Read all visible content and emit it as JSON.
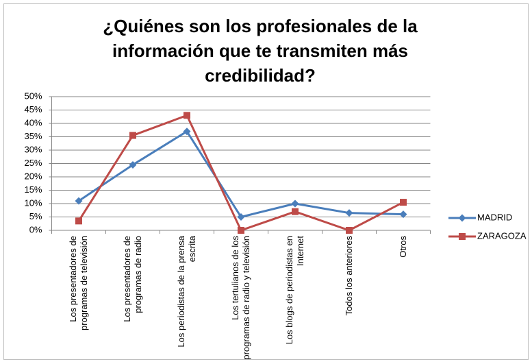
{
  "chart_data": {
    "type": "line",
    "title": "¿Quiénes son los profesionales de la información que te transmiten más credibilidad?",
    "categories": [
      "Los presentadores de programas de televisión",
      "Los presentadores de programas de radio",
      "Los periodistas de la prensa escrita",
      "Los tertulianos de los programas de radio y televisión",
      "Los blogs de periodistas en Internet",
      "Todos los anteriores",
      "Otros"
    ],
    "series": [
      {
        "name": "MADRID",
        "color": "#4a7ebb",
        "marker": "diamond",
        "values": [
          11,
          24.5,
          37,
          5,
          10,
          6.5,
          6
        ]
      },
      {
        "name": "ZARAGOZA",
        "color": "#be4b48",
        "marker": "square",
        "values": [
          3.5,
          35.5,
          43,
          0,
          7,
          0,
          10.5
        ]
      }
    ],
    "ylim": [
      0,
      50
    ],
    "yticks": [
      {
        "value": 0,
        "label": "0%"
      },
      {
        "value": 5,
        "label": "5%"
      },
      {
        "value": 10,
        "label": "10%"
      },
      {
        "value": 15,
        "label": "15%"
      },
      {
        "value": 20,
        "label": "20%"
      },
      {
        "value": 25,
        "label": "25%"
      },
      {
        "value": 30,
        "label": "30%"
      },
      {
        "value": 35,
        "label": "35%"
      },
      {
        "value": 40,
        "label": "40%"
      },
      {
        "value": 45,
        "label": "45%"
      },
      {
        "value": 50,
        "label": "50%"
      }
    ],
    "grid": true,
    "legend": "right"
  }
}
